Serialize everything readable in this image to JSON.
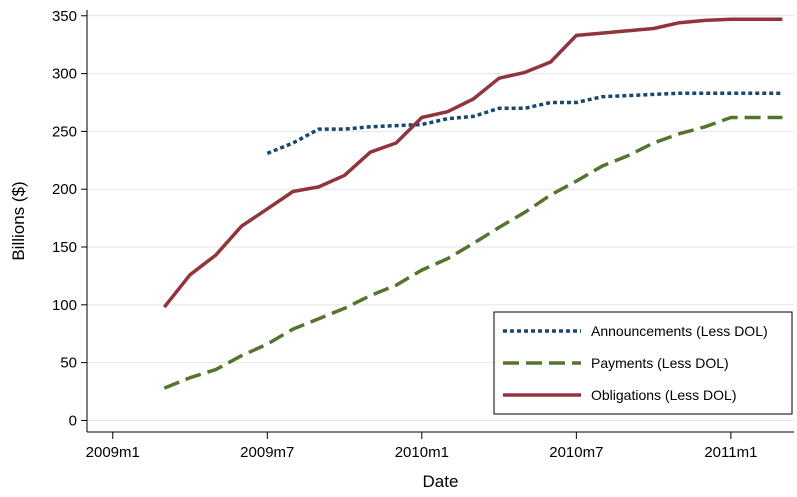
{
  "chart_data": {
    "type": "line",
    "xlabel": "Date",
    "ylabel": "Billions ($)",
    "x_ticks": [
      "2009m1",
      "2009m7",
      "2010m1",
      "2010m7",
      "2011m1"
    ],
    "y_ticks": [
      0,
      50,
      100,
      150,
      200,
      250,
      300,
      350
    ],
    "xlim": [
      "2008m12",
      "2011m3"
    ],
    "ylim": [
      -10,
      355
    ],
    "legend_position": "bottom-right",
    "series": [
      {
        "name": "Announcements (Less DOL)",
        "color": "#1a476f",
        "style": "dotted",
        "x": [
          "2009m7",
          "2009m8",
          "2009m9",
          "2009m10",
          "2009m11",
          "2009m12",
          "2010m1",
          "2010m2",
          "2010m3",
          "2010m4",
          "2010m5",
          "2010m6",
          "2010m7",
          "2010m8",
          "2010m9",
          "2010m10",
          "2010m11",
          "2010m12",
          "2011m1",
          "2011m2",
          "2011m3"
        ],
        "values": [
          231,
          240,
          252,
          252,
          254,
          255,
          256,
          261,
          263,
          270,
          270,
          275,
          275,
          280,
          281,
          282,
          283,
          283,
          283,
          283,
          283
        ]
      },
      {
        "name": "Payments (Less DOL)",
        "color": "#55752f",
        "style": "dashed",
        "x": [
          "2009m3",
          "2009m4",
          "2009m5",
          "2009m6",
          "2009m7",
          "2009m8",
          "2009m9",
          "2009m10",
          "2009m11",
          "2009m12",
          "2010m1",
          "2010m2",
          "2010m3",
          "2010m4",
          "2010m5",
          "2010m6",
          "2010m7",
          "2010m8",
          "2010m9",
          "2010m10",
          "2010m11",
          "2010m12",
          "2011m1",
          "2011m2",
          "2011m3"
        ],
        "values": [
          28,
          37,
          44,
          56,
          66,
          79,
          88,
          97,
          108,
          117,
          130,
          140,
          153,
          167,
          180,
          195,
          207,
          220,
          229,
          240,
          248,
          254,
          262,
          262,
          262
        ]
      },
      {
        "name": "Obligations (Less DOL)",
        "color": "#90353b",
        "style": "solid",
        "x": [
          "2009m3",
          "2009m4",
          "2009m5",
          "2009m6",
          "2009m7",
          "2009m8",
          "2009m9",
          "2009m10",
          "2009m11",
          "2009m12",
          "2010m1",
          "2010m2",
          "2010m3",
          "2010m4",
          "2010m5",
          "2010m6",
          "2010m7",
          "2010m8",
          "2010m9",
          "2010m10",
          "2010m11",
          "2010m12",
          "2011m1",
          "2011m2",
          "2011m3"
        ],
        "values": [
          98,
          126,
          143,
          168,
          183,
          198,
          202,
          212,
          232,
          240,
          262,
          267,
          278,
          296,
          301,
          310,
          333,
          335,
          337,
          339,
          344,
          346,
          347,
          347,
          347
        ]
      }
    ]
  }
}
